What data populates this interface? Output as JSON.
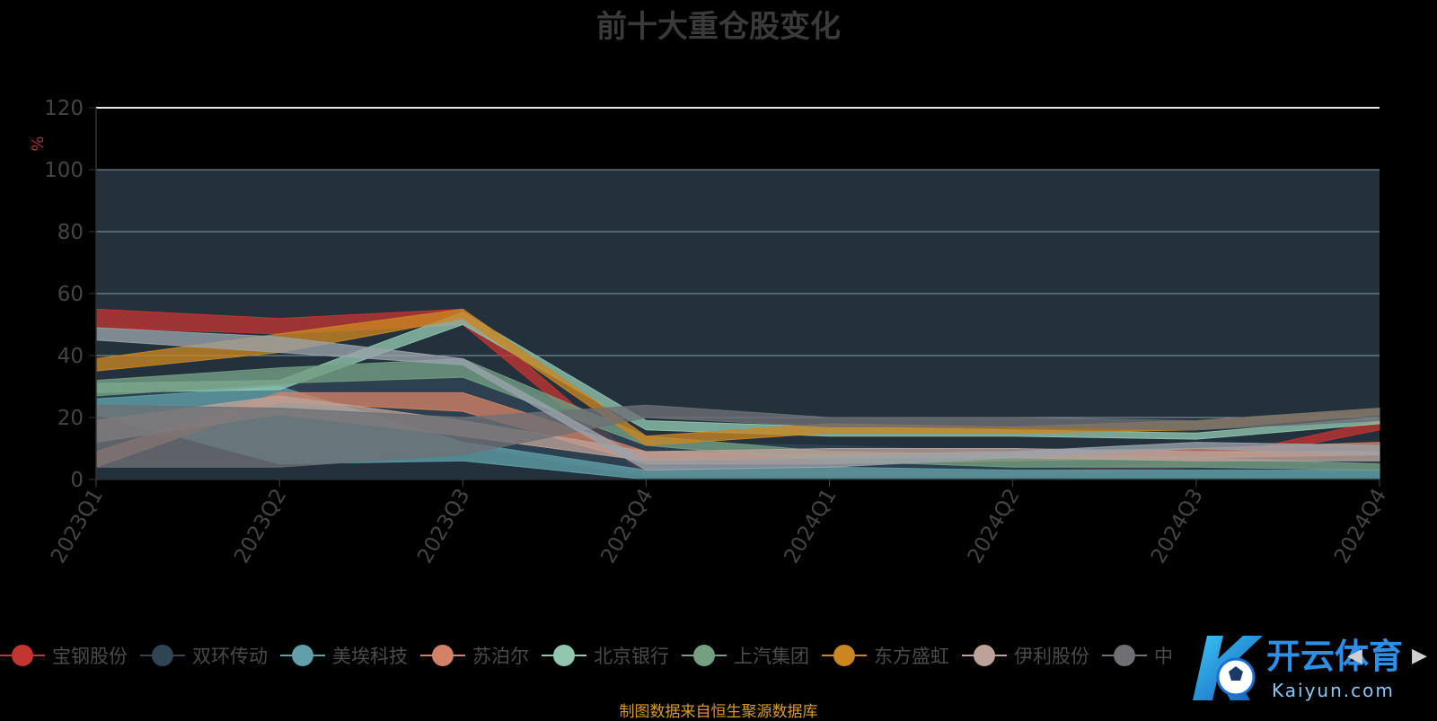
{
  "title": "前十大重仓股变化",
  "source": "制图数据来自恒生聚源数据库",
  "watermark": {
    "brand": "开云体育",
    "domain": "Kaiyun.com"
  },
  "legend_nav": {
    "prev_icon": "◀",
    "next_icon": "▶"
  },
  "colors": {
    "background": "#000000",
    "plot_bg": "#22313c",
    "grid": "#8a9aa6",
    "axis_text": "#444444",
    "unit_text": "#c0282a",
    "source_text": "#d89a2a"
  },
  "chart_data": {
    "type": "area",
    "stacked": false,
    "title": "前十大重仓股变化",
    "ylabel": "%",
    "ylim": [
      0,
      120
    ],
    "yticks": [
      0,
      20,
      40,
      60,
      80,
      100,
      120
    ],
    "grid": true,
    "legend_position": "bottom",
    "categories": [
      "2023Q1",
      "2023Q2",
      "2023Q3",
      "2023Q4",
      "2024Q1",
      "2024Q2",
      "2024Q3",
      "2024Q4"
    ],
    "series": [
      {
        "name": "宝钢股份",
        "color": "#c23531",
        "upper": [
          55,
          52,
          55,
          4,
          3,
          2,
          6,
          19
        ],
        "lower": [
          49,
          47,
          50,
          1,
          1,
          1,
          4,
          16
        ]
      },
      {
        "name": "双环传动",
        "color": "#2f4554",
        "upper": [
          32,
          35,
          38,
          12,
          11,
          9,
          8,
          9
        ],
        "lower": [
          15,
          12,
          11,
          1,
          1,
          1,
          1,
          1
        ]
      },
      {
        "name": "美埃科技",
        "color": "#61a0a8",
        "upper": [
          26,
          30,
          12,
          3,
          4,
          3,
          3,
          3
        ],
        "lower": [
          21,
          5,
          6,
          0,
          0,
          0,
          0,
          0
        ]
      },
      {
        "name": "苏泊尔",
        "color": "#d48265",
        "upper": [
          9,
          28,
          28,
          9,
          8,
          9,
          10,
          12
        ],
        "lower": [
          4,
          25,
          22,
          5,
          5,
          6,
          7,
          8
        ]
      },
      {
        "name": "北京银行",
        "color": "#91c7ae",
        "upper": [
          31,
          32,
          54,
          19,
          17,
          16,
          15,
          20
        ],
        "lower": [
          28,
          29,
          50,
          16,
          14,
          14,
          13,
          18
        ]
      },
      {
        "name": "上汽集团",
        "color": "#749f83",
        "upper": [
          32,
          36,
          39,
          14,
          9,
          8,
          7,
          5
        ],
        "lower": [
          27,
          31,
          33,
          11,
          6,
          4,
          4,
          3
        ]
      },
      {
        "name": "东方盛虹",
        "color": "#ca8622",
        "upper": [
          39,
          47,
          55,
          14,
          18,
          17,
          19,
          23
        ],
        "lower": [
          35,
          41,
          52,
          11,
          15,
          15,
          16,
          21
        ]
      },
      {
        "name": "伊利股份",
        "color": "#bda29a",
        "upper": [
          19,
          27,
          19,
          9,
          10,
          10,
          9,
          9
        ],
        "lower": [
          12,
          21,
          14,
          6,
          7,
          7,
          6,
          6
        ]
      },
      {
        "name": "中",
        "color": "#6e7074",
        "upper": [
          24,
          23,
          20,
          24,
          20,
          20,
          19,
          23
        ],
        "lower": [
          4,
          4,
          8,
          20,
          17,
          17,
          16,
          19
        ]
      },
      {
        "name": "",
        "color": "#9aa3ab",
        "upper": [
          49,
          46,
          39,
          6,
          7,
          9,
          12,
          11
        ],
        "lower": [
          45,
          41,
          37,
          3,
          4,
          7,
          10,
          8
        ]
      }
    ]
  }
}
